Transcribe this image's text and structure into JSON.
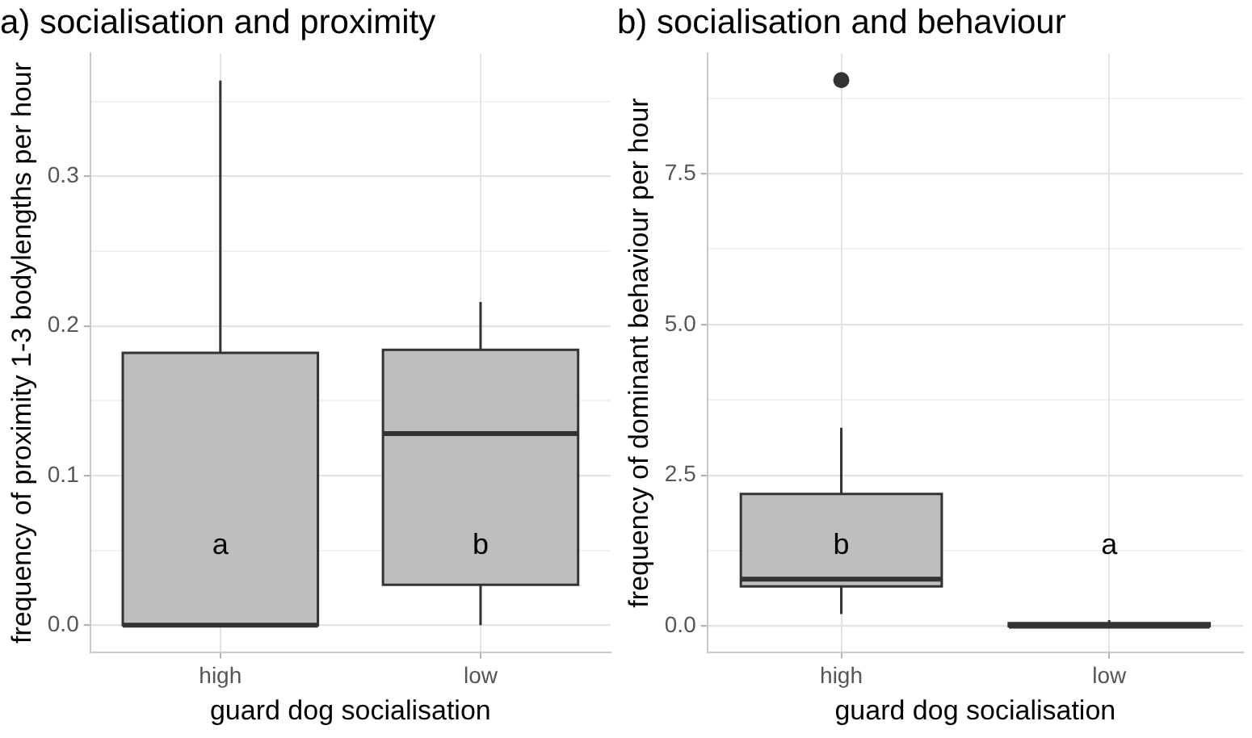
{
  "chart_data": [
    {
      "type": "box",
      "title": "a) socialisation and proximity",
      "xlabel": "guard dog socialisation",
      "ylabel": "frequency of proximity 1-3 bodylengths per hour",
      "categories": [
        "high",
        "low"
      ],
      "series": [
        {
          "color": "#bebebe",
          "boxes": [
            {
              "low": 0,
              "q1": 0,
              "median": 0,
              "q3": 0.182,
              "high": 0.364
            },
            {
              "low": 0,
              "q1": 0.027,
              "median": 0.128,
              "q3": 0.184,
              "high": 0.216
            }
          ]
        }
      ],
      "ylim": [
        -0.018,
        0.382
      ],
      "yticks": [
        {
          "value": 0,
          "label": "0.0"
        },
        {
          "value": 0.05,
          "label": null
        },
        {
          "value": 0.1,
          "label": "0.1"
        },
        {
          "value": 0.15,
          "label": null
        },
        {
          "value": 0.2,
          "label": "0.2"
        },
        {
          "value": 0.25,
          "label": null
        },
        {
          "value": 0.3,
          "label": "0.3"
        },
        {
          "value": 0.35,
          "label": null
        }
      ],
      "grid": true,
      "annotations": [
        "a",
        "b"
      ]
    },
    {
      "type": "box",
      "title": "b) socialisation and behaviour",
      "xlabel": "guard dog socialisation",
      "ylabel": "frequency of dominant behaviour per hour",
      "categories": [
        "high",
        "low"
      ],
      "series": [
        {
          "color": "#bebebe",
          "boxes": [
            {
              "low": 0.2,
              "q1": 0.66,
              "median": 0.78,
              "q3": 2.19,
              "high": 3.29,
              "outliers": [
                9.05
              ]
            },
            {
              "low": 0,
              "q1": 0,
              "median": 0,
              "q3": 0.05,
              "high": 0.1
            }
          ]
        }
      ],
      "ylim": [
        -0.43,
        9.49
      ],
      "yticks": [
        {
          "value": 0,
          "label": "0.0"
        },
        {
          "value": 1.25,
          "label": null
        },
        {
          "value": 2.5,
          "label": "2.5"
        },
        {
          "value": 3.75,
          "label": null
        },
        {
          "value": 5,
          "label": "5.0"
        },
        {
          "value": 6.25,
          "label": null
        },
        {
          "value": 7.5,
          "label": "7.5"
        },
        {
          "value": 8.75,
          "label": null
        }
      ],
      "grid": true,
      "annotations": [
        "b",
        "a"
      ]
    }
  ]
}
